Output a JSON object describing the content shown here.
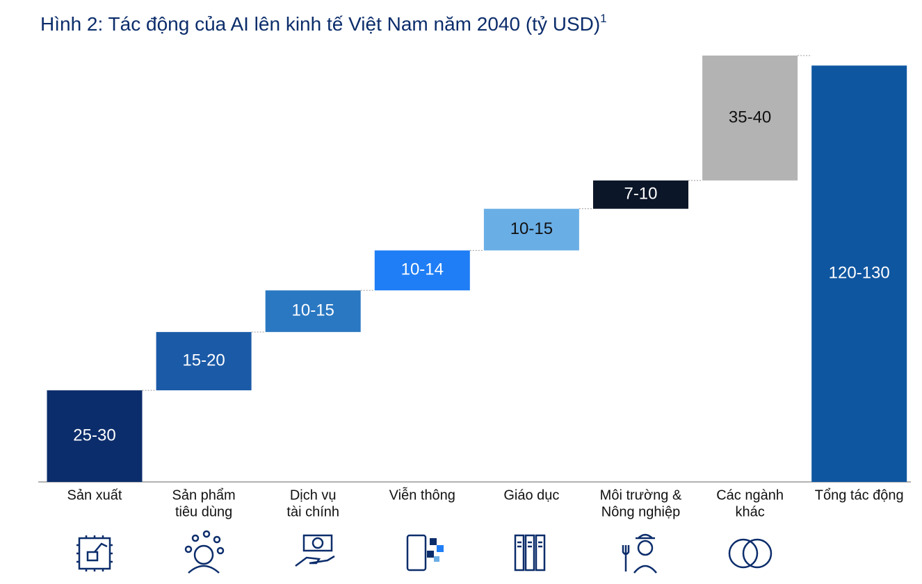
{
  "chart_data": {
    "type": "waterfall",
    "title": "Hình 2: Tác động của AI lên kinh tế Việt Nam năm 2040 (tỷ USD)",
    "title_note": "1",
    "categories": [
      [
        "Sản xuất"
      ],
      [
        "Sản phẩm",
        "tiêu dùng"
      ],
      [
        "Dịch vụ",
        "tài chính"
      ],
      [
        "Viễn thông"
      ],
      [
        "Giáo dục"
      ],
      [
        "Môi trường &",
        "Nông nghiệp"
      ],
      [
        "Các ngành",
        "khác"
      ]
    ],
    "low": [
      25,
      15,
      10,
      10,
      10,
      7,
      35
    ],
    "high": [
      30,
      20,
      15,
      14,
      15,
      10,
      40
    ],
    "value_labels": [
      "25-30",
      "15-20",
      "10-15",
      "10-14",
      "10-15",
      "7-10",
      "35-40"
    ],
    "colors": [
      "#0c2d6b",
      "#1b5aa7",
      "#2a78c2",
      "#1f7ef5",
      "#6aaee6",
      "#0b1628",
      "#b3b3b3"
    ],
    "total": {
      "label": [
        "Tổng tác động"
      ],
      "low": 120,
      "high": 130,
      "value_label": "120-130",
      "color": "#0f56a0"
    }
  }
}
